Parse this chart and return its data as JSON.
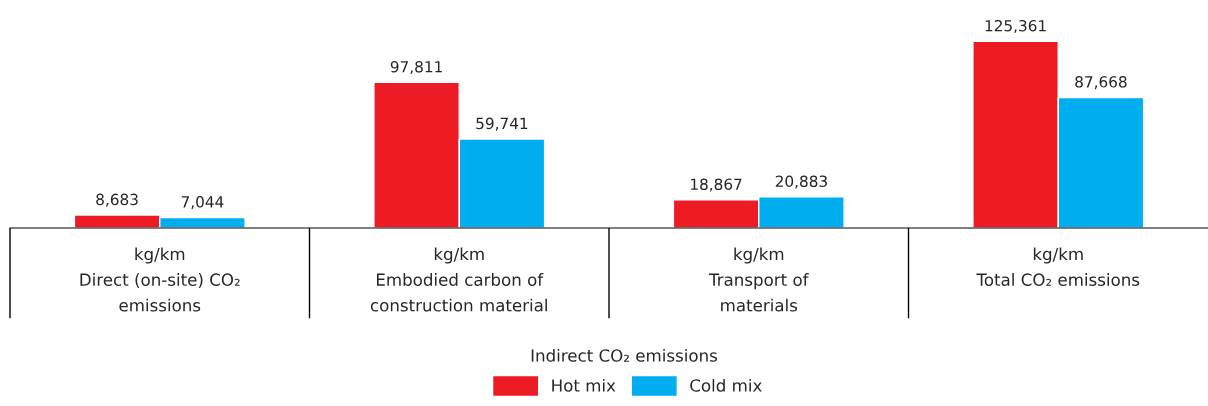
{
  "chart_data": {
    "type": "bar",
    "categories": [
      "kg/km\nDirect (on-site) CO₂\nemissions",
      "kg/km\nEmbodied carbon of\nconstruction material",
      "kg/km\nTransport of\nmaterials",
      "kg/km\nTotal CO₂ emissions"
    ],
    "series": [
      {
        "name": "Hot mix",
        "color": "#ed1c24",
        "values": [
          8683,
          97811,
          18867,
          125361
        ],
        "value_labels": [
          "8,683",
          "97,811",
          "18,867",
          "125,361"
        ]
      },
      {
        "name": "Cold mix",
        "color": "#00aeef",
        "values": [
          7044,
          59741,
          20883,
          87668
        ],
        "value_labels": [
          "7,044",
          "59,741",
          "20,883",
          "87,668"
        ]
      }
    ],
    "xlabel": "Indirect CO₂ emissions",
    "tick_labels": "x",
    "grid": false,
    "legend": "bottom"
  }
}
